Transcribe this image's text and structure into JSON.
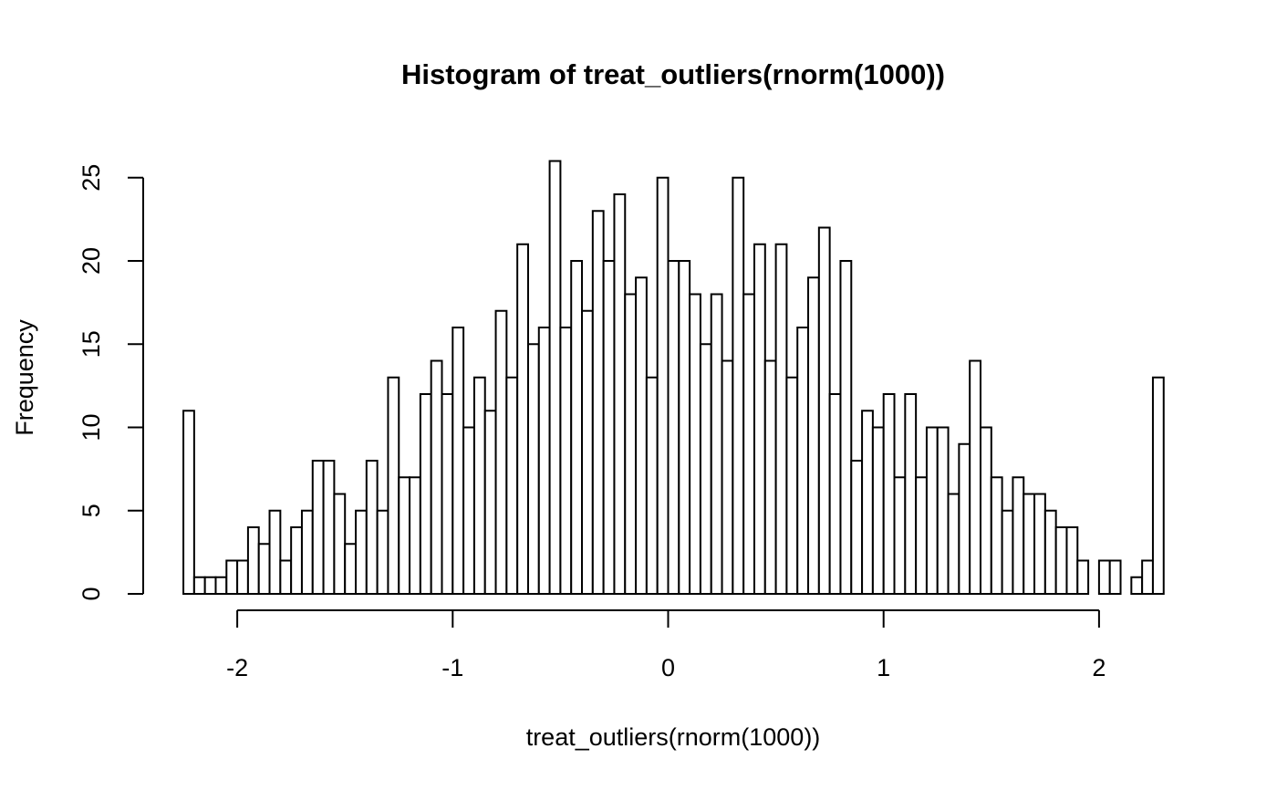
{
  "chart_data": {
    "type": "bar",
    "title": "Histogram of treat_outliers(rnorm(1000))",
    "xlabel": "treat_outliers(rnorm(1000))",
    "ylabel": "Frequency",
    "bin_start": -2.25,
    "bin_width": 0.05,
    "values": [
      11,
      1,
      1,
      1,
      2,
      2,
      4,
      3,
      5,
      2,
      4,
      5,
      8,
      8,
      6,
      3,
      5,
      8,
      5,
      13,
      7,
      7,
      12,
      14,
      12,
      16,
      10,
      13,
      11,
      17,
      13,
      21,
      15,
      16,
      26,
      16,
      20,
      17,
      23,
      20,
      24,
      18,
      19,
      13,
      25,
      20,
      20,
      18,
      15,
      18,
      14,
      25,
      18,
      21,
      14,
      21,
      13,
      16,
      19,
      22,
      12,
      20,
      8,
      11,
      10,
      12,
      7,
      12,
      7,
      10,
      10,
      6,
      9,
      14,
      10,
      7,
      5,
      7,
      6,
      6,
      5,
      4,
      4,
      2,
      0,
      2,
      2,
      0,
      1,
      2,
      13
    ],
    "xticks": [
      -2,
      -1,
      0,
      1,
      2
    ],
    "xtick_labels": [
      "-2",
      "-1",
      "0",
      "1",
      "2"
    ],
    "yticks": [
      0,
      5,
      10,
      15,
      20,
      25
    ],
    "ytick_labels": [
      "0",
      "5",
      "10",
      "15",
      "20",
      "25"
    ],
    "xlim": [
      -2.25,
      2.3
    ],
    "ylim": [
      0,
      26
    ],
    "grid": false,
    "legend": "none"
  }
}
